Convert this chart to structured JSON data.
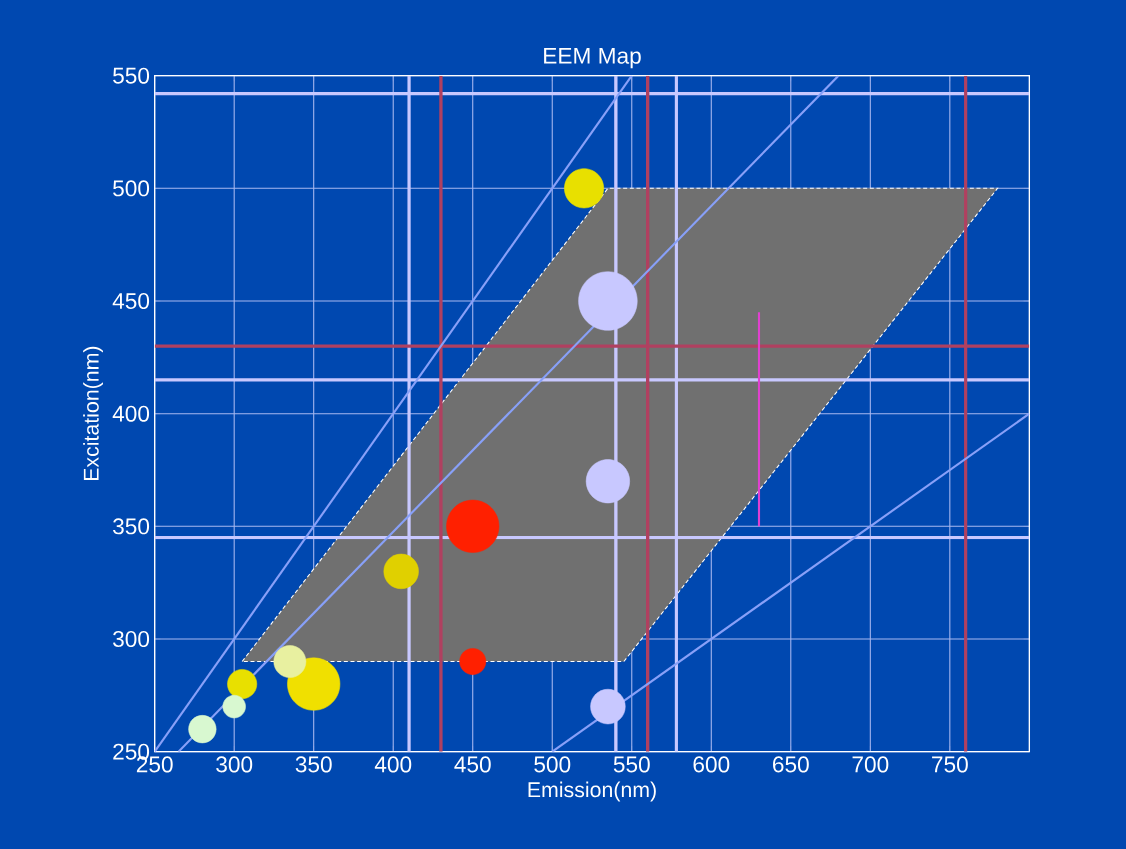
{
  "chart_data": {
    "type": "bubble",
    "title": "EEM Map",
    "xlabel": "Emission(nm)",
    "ylabel": "Excitation(nm)",
    "xlim": [
      250,
      800
    ],
    "ylim": [
      250,
      550
    ],
    "xticks": [
      250,
      300,
      350,
      400,
      450,
      500,
      550,
      600,
      650,
      700,
      750
    ],
    "yticks": [
      250,
      300,
      350,
      400,
      450,
      500,
      550
    ],
    "grid": true,
    "series": [
      {
        "type": "line",
        "color": "#707070",
        "x": [
          305,
          535,
          545,
          780
        ],
        "values": [
          null,
          null,
          null,
          null
        ],
        "upper": [
          290,
          500,
          500,
          500
        ],
        "lower": [
          290,
          290,
          290,
          500
        ]
      },
      {
        "type": "line",
        "color": "#88a0f8",
        "x": [
          250,
          550
        ],
        "values": [
          250,
          550
        ]
      },
      {
        "type": "line",
        "color": "#88a0f8",
        "x": [
          265,
          680
        ],
        "values": [
          250,
          550
        ]
      },
      {
        "type": "line",
        "color": "#88a0f8",
        "x": [
          500,
          800
        ],
        "values": [
          250,
          400
        ]
      },
      {
        "type": "line",
        "color": "#e040d0",
        "x": [
          630,
          630
        ],
        "values": [
          350,
          445
        ]
      },
      {
        "x": [
          520,
          535,
          535,
          450,
          450,
          405,
          350,
          335,
          305,
          280,
          300,
          535
        ],
        "values": [
          500,
          450,
          370,
          350,
          290,
          330,
          280,
          290,
          280,
          260,
          270,
          270
        ],
        "sizes": [
          0.45,
          1,
          0.55,
          0.8,
          0.2,
          0.35,
          0.8,
          0.3,
          0.25,
          0.22,
          0.15,
          0.35
        ],
        "colors": [
          "#e8e000",
          "#c8c8ff",
          "#c8c8ff",
          "#ff2000",
          "#ff2000",
          "#e0d000",
          "#f0e000",
          "#e8f0a0",
          "#e8e000",
          "#d8f8d0",
          "#d8f8d0",
          "#c8c8ff"
        ]
      }
    ],
    "ref_lines": [
      {
        "axis": "y",
        "value": 542,
        "color": "#c8c8ff"
      },
      {
        "axis": "y",
        "value": 415,
        "color": "#c8c8ff"
      },
      {
        "axis": "y",
        "value": 345,
        "color": "#c8c8ff"
      },
      {
        "axis": "x",
        "value": 410,
        "color": "#c8c8ff"
      },
      {
        "axis": "x",
        "value": 540,
        "color": "#c8c8ff"
      },
      {
        "axis": "x",
        "value": 578,
        "color": "#c8c8ff"
      },
      {
        "axis": "x",
        "value": 430,
        "color": "#b04060"
      },
      {
        "axis": "x",
        "value": 560,
        "color": "#b04060"
      },
      {
        "axis": "x",
        "value": 760,
        "color": "#b04060"
      },
      {
        "axis": "y",
        "value": 430,
        "color": "#b04060"
      }
    ]
  }
}
